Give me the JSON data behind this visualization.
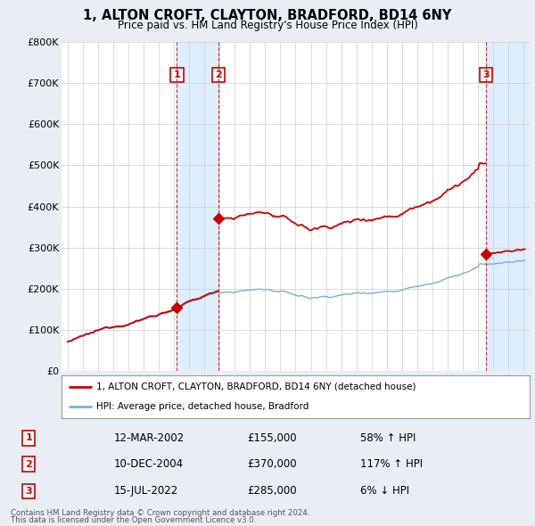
{
  "title": "1, ALTON CROFT, CLAYTON, BRADFORD, BD14 6NY",
  "subtitle": "Price paid vs. HM Land Registry's House Price Index (HPI)",
  "legend_line1": "1, ALTON CROFT, CLAYTON, BRADFORD, BD14 6NY (detached house)",
  "legend_line2": "HPI: Average price, detached house, Bradford",
  "footer1": "Contains HM Land Registry data © Crown copyright and database right 2024.",
  "footer2": "This data is licensed under the Open Government Licence v3.0.",
  "transactions": [
    {
      "num": 1,
      "date": "12-MAR-2002",
      "price": "£155,000",
      "change": "58% ↑ HPI",
      "x": 2002.19
    },
    {
      "num": 2,
      "date": "10-DEC-2004",
      "price": "£370,000",
      "change": "117% ↑ HPI",
      "x": 2004.94
    },
    {
      "num": 3,
      "date": "15-JUL-2022",
      "price": "£285,000",
      "change": "6% ↓ HPI",
      "x": 2022.54
    }
  ],
  "trans_values": [
    155000,
    370000,
    285000
  ],
  "hpi_color": "#7aaddb",
  "price_color": "#cc0000",
  "shade_color": "#ddeeff",
  "background_color": "#e8eef4",
  "plot_bg": "#ffffff",
  "ylim": [
    0,
    800000
  ],
  "xlim_start": 1994.6,
  "xlim_end": 2025.4,
  "yticks": [
    0,
    100000,
    200000,
    300000,
    400000,
    500000,
    600000,
    700000,
    800000
  ],
  "ytick_labels": [
    "£0",
    "£100K",
    "£200K",
    "£300K",
    "£400K",
    "£500K",
    "£600K",
    "£700K",
    "£800K"
  ],
  "xticks": [
    1995,
    1996,
    1997,
    1998,
    1999,
    2000,
    2001,
    2002,
    2003,
    2004,
    2005,
    2006,
    2007,
    2008,
    2009,
    2010,
    2011,
    2012,
    2013,
    2014,
    2015,
    2016,
    2017,
    2018,
    2019,
    2020,
    2021,
    2022,
    2023,
    2024,
    2025
  ]
}
